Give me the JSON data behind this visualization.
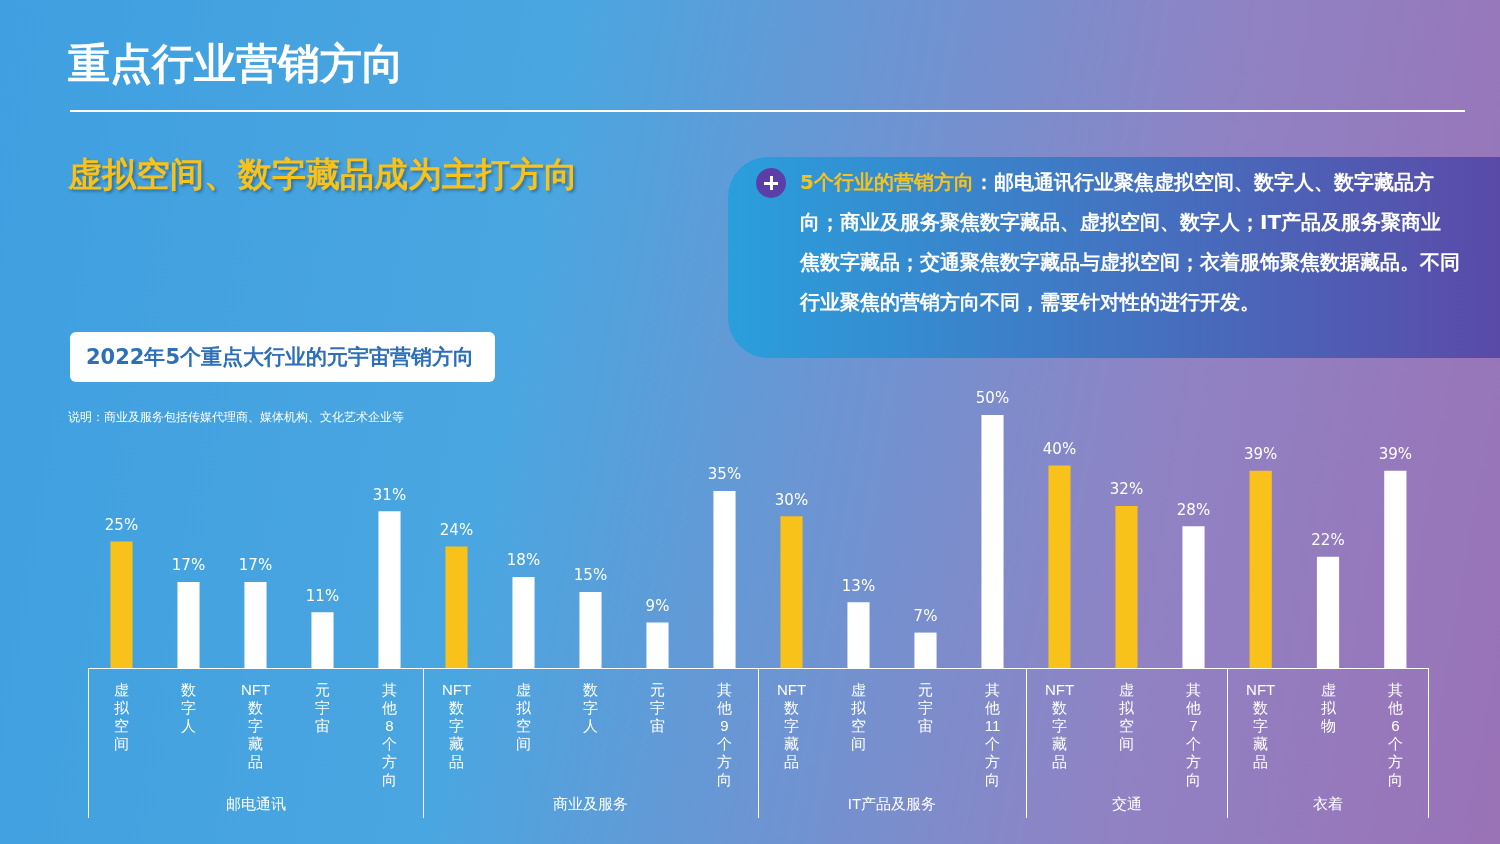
{
  "chart_data": [
    {
      "type": "bar",
      "title": "重点行业营销方向",
      "subtitle": "虚拟空间、数字藏品成为主打方向",
      "annotations": [
        "5个行业的营销方向",
        "：邮电通讯行业聚焦虚拟空间、数字人、数字藏品方向；商业及服务聚焦数字藏品、虚拟空间、数字人；IT产品及服务聚商业焦数字藏品；交通聚焦数字藏品与虚拟空间；衣着服饰聚焦数据藏品。不同行业聚焦的营销方向不同，需要针对性的进行开发。",
        "2022年5个重点大行业的元宇宙营销方向",
        "说明：商业及服务包括传媒代理商、媒体机构、文化艺术企业等"
      ],
      "xlabel": "邮电通讯",
      "categories": [
        "虚拟空间",
        "数字人",
        "NFT数字藏品",
        "元宇宙",
        "其他8个方向"
      ],
      "values": [
        25,
        17,
        17,
        11,
        31
      ],
      "colors": [
        "#f9c21b",
        "#ffffff",
        "#ffffff",
        "#ffffff",
        "#ffffff"
      ],
      "value_labels": [
        "25%",
        "17%",
        "17%",
        "11%",
        "31%"
      ]
    },
    {
      "type": "bar",
      "xlabel": "商业及服务",
      "categories": [
        "NFT数字藏品",
        "虚拟空间",
        "数字人",
        "元宇宙",
        "其他9个方向"
      ],
      "values": [
        24,
        18,
        15,
        9,
        35
      ],
      "colors": [
        "#f9c21b",
        "#ffffff",
        "#ffffff",
        "#ffffff",
        "#ffffff"
      ],
      "value_labels": [
        "24%",
        "18%",
        "15%",
        "9%",
        "35%"
      ]
    },
    {
      "type": "bar",
      "xlabel": "IT产品及服务",
      "categories": [
        "NFT数字藏品",
        "虚拟空间",
        "元宇宙",
        "其他11个方向"
      ],
      "values": [
        30,
        13,
        7,
        50
      ],
      "colors": [
        "#f9c21b",
        "#ffffff",
        "#ffffff",
        "#ffffff"
      ],
      "value_labels": [
        "30%",
        "13%",
        "7%",
        "50%"
      ]
    },
    {
      "type": "bar",
      "xlabel": "交通",
      "categories": [
        "NFT数字藏品",
        "虚拟空间",
        "其他7个方向"
      ],
      "values": [
        40,
        32,
        28
      ],
      "colors": [
        "#f9c21b",
        "#f9c21b",
        "#ffffff"
      ],
      "value_labels": [
        "40%",
        "32%",
        "28%"
      ]
    },
    {
      "type": "bar",
      "xlabel": "衣着",
      "categories": [
        "NFT数字藏品",
        "虚拟物",
        "其他6个方向"
      ],
      "values": [
        39,
        22,
        39
      ],
      "colors": [
        "#f9c21b",
        "#ffffff",
        "#ffffff"
      ],
      "value_labels": [
        "39%",
        "22%",
        "39%"
      ]
    }
  ]
}
